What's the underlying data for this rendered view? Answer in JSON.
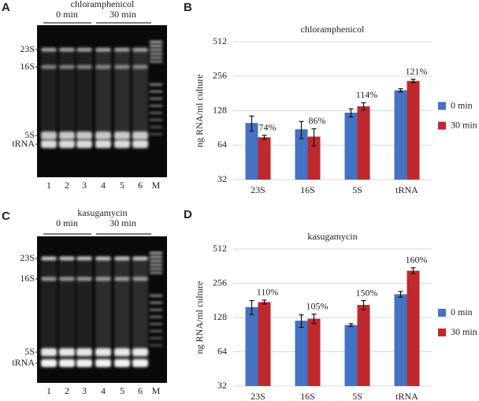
{
  "gels": [
    {
      "panel": "A",
      "title": "chloramphenicol",
      "groups": [
        "0 min",
        "30 min"
      ],
      "bands": [
        "23S",
        "16S",
        "5S",
        "tRNA"
      ],
      "lanes": [
        "1",
        "2",
        "3",
        "4",
        "5",
        "6",
        "M"
      ]
    },
    {
      "panel": "C",
      "title": "kasugamycin",
      "groups": [
        "0 min",
        "30 min"
      ],
      "bands": [
        "23S",
        "16S",
        "5S",
        "tRNA"
      ],
      "lanes": [
        "1",
        "2",
        "3",
        "4",
        "5",
        "6",
        "M"
      ]
    }
  ],
  "chart_data": [
    {
      "type": "bar",
      "panel": "B",
      "title": "chloramphenicol",
      "y_label": "ng RNA/ml culture",
      "categories": [
        "23S",
        "16S",
        "5S",
        "tRNA"
      ],
      "series": [
        {
          "name": "0 min",
          "color": "#4472c4",
          "values": [
            100,
            88,
            123,
            193
          ],
          "errors": [
            15,
            15,
            10,
            6
          ]
        },
        {
          "name": "30 min",
          "color": "#c0282d",
          "values": [
            75,
            76,
            140,
            233
          ],
          "errors": [
            3,
            13,
            10,
            8
          ]
        }
      ],
      "annotations": [
        "74%",
        "86%",
        "114%",
        "121%"
      ],
      "log_scale": true,
      "ylim": [
        32,
        512
      ],
      "yticks": [
        32,
        64,
        128,
        256,
        512
      ],
      "grid": true,
      "legend": "right"
    },
    {
      "type": "bar",
      "panel": "D",
      "title": "kasugamycin",
      "y_label": "ng RNA/ml culture",
      "categories": [
        "23S",
        "16S",
        "5S",
        "tRNA"
      ],
      "series": [
        {
          "name": "0 min",
          "color": "#4472c4",
          "values": [
            158,
            120,
            110,
            205
          ],
          "errors": [
            22,
            15,
            3,
            12
          ]
        },
        {
          "name": "30 min",
          "color": "#c0282d",
          "values": [
            175,
            125,
            165,
            330
          ],
          "errors": [
            7,
            12,
            15,
            20
          ]
        }
      ],
      "annotations": [
        "110%",
        "105%",
        "150%",
        "160%"
      ],
      "log_scale": true,
      "ylim": [
        32,
        512
      ],
      "yticks": [
        32,
        64,
        128,
        256,
        512
      ],
      "grid": true,
      "legend": "right"
    }
  ]
}
